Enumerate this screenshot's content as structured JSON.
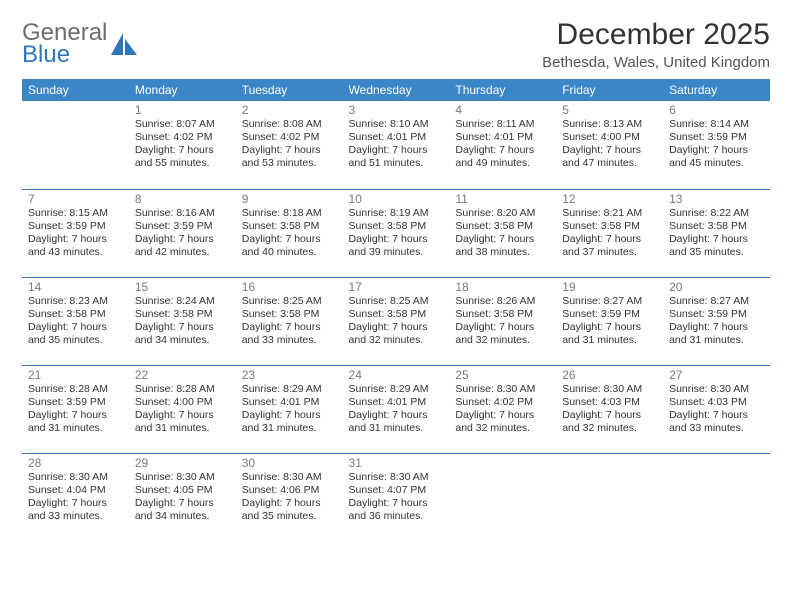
{
  "brand": {
    "line1": "General",
    "line2": "Blue"
  },
  "title": "December 2025",
  "location": "Bethesda, Wales, United Kingdom",
  "day_headers": [
    "Sunday",
    "Monday",
    "Tuesday",
    "Wednesday",
    "Thursday",
    "Friday",
    "Saturday"
  ],
  "colors": {
    "header_bg": "#3b86c7",
    "header_fg": "#ffffff",
    "rule": "#2f77bb",
    "brand_blue": "#2f77bb",
    "brand_gray": "#6d6d6d"
  },
  "first_weekday_index": 1,
  "days": [
    {
      "n": 1,
      "sunrise": "8:07 AM",
      "sunset": "4:02 PM",
      "daylight": "7 hours and 55 minutes."
    },
    {
      "n": 2,
      "sunrise": "8:08 AM",
      "sunset": "4:02 PM",
      "daylight": "7 hours and 53 minutes."
    },
    {
      "n": 3,
      "sunrise": "8:10 AM",
      "sunset": "4:01 PM",
      "daylight": "7 hours and 51 minutes."
    },
    {
      "n": 4,
      "sunrise": "8:11 AM",
      "sunset": "4:01 PM",
      "daylight": "7 hours and 49 minutes."
    },
    {
      "n": 5,
      "sunrise": "8:13 AM",
      "sunset": "4:00 PM",
      "daylight": "7 hours and 47 minutes."
    },
    {
      "n": 6,
      "sunrise": "8:14 AM",
      "sunset": "3:59 PM",
      "daylight": "7 hours and 45 minutes."
    },
    {
      "n": 7,
      "sunrise": "8:15 AM",
      "sunset": "3:59 PM",
      "daylight": "7 hours and 43 minutes."
    },
    {
      "n": 8,
      "sunrise": "8:16 AM",
      "sunset": "3:59 PM",
      "daylight": "7 hours and 42 minutes."
    },
    {
      "n": 9,
      "sunrise": "8:18 AM",
      "sunset": "3:58 PM",
      "daylight": "7 hours and 40 minutes."
    },
    {
      "n": 10,
      "sunrise": "8:19 AM",
      "sunset": "3:58 PM",
      "daylight": "7 hours and 39 minutes."
    },
    {
      "n": 11,
      "sunrise": "8:20 AM",
      "sunset": "3:58 PM",
      "daylight": "7 hours and 38 minutes."
    },
    {
      "n": 12,
      "sunrise": "8:21 AM",
      "sunset": "3:58 PM",
      "daylight": "7 hours and 37 minutes."
    },
    {
      "n": 13,
      "sunrise": "8:22 AM",
      "sunset": "3:58 PM",
      "daylight": "7 hours and 35 minutes."
    },
    {
      "n": 14,
      "sunrise": "8:23 AM",
      "sunset": "3:58 PM",
      "daylight": "7 hours and 35 minutes."
    },
    {
      "n": 15,
      "sunrise": "8:24 AM",
      "sunset": "3:58 PM",
      "daylight": "7 hours and 34 minutes."
    },
    {
      "n": 16,
      "sunrise": "8:25 AM",
      "sunset": "3:58 PM",
      "daylight": "7 hours and 33 minutes."
    },
    {
      "n": 17,
      "sunrise": "8:25 AM",
      "sunset": "3:58 PM",
      "daylight": "7 hours and 32 minutes."
    },
    {
      "n": 18,
      "sunrise": "8:26 AM",
      "sunset": "3:58 PM",
      "daylight": "7 hours and 32 minutes."
    },
    {
      "n": 19,
      "sunrise": "8:27 AM",
      "sunset": "3:59 PM",
      "daylight": "7 hours and 31 minutes."
    },
    {
      "n": 20,
      "sunrise": "8:27 AM",
      "sunset": "3:59 PM",
      "daylight": "7 hours and 31 minutes."
    },
    {
      "n": 21,
      "sunrise": "8:28 AM",
      "sunset": "3:59 PM",
      "daylight": "7 hours and 31 minutes."
    },
    {
      "n": 22,
      "sunrise": "8:28 AM",
      "sunset": "4:00 PM",
      "daylight": "7 hours and 31 minutes."
    },
    {
      "n": 23,
      "sunrise": "8:29 AM",
      "sunset": "4:01 PM",
      "daylight": "7 hours and 31 minutes."
    },
    {
      "n": 24,
      "sunrise": "8:29 AM",
      "sunset": "4:01 PM",
      "daylight": "7 hours and 31 minutes."
    },
    {
      "n": 25,
      "sunrise": "8:30 AM",
      "sunset": "4:02 PM",
      "daylight": "7 hours and 32 minutes."
    },
    {
      "n": 26,
      "sunrise": "8:30 AM",
      "sunset": "4:03 PM",
      "daylight": "7 hours and 32 minutes."
    },
    {
      "n": 27,
      "sunrise": "8:30 AM",
      "sunset": "4:03 PM",
      "daylight": "7 hours and 33 minutes."
    },
    {
      "n": 28,
      "sunrise": "8:30 AM",
      "sunset": "4:04 PM",
      "daylight": "7 hours and 33 minutes."
    },
    {
      "n": 29,
      "sunrise": "8:30 AM",
      "sunset": "4:05 PM",
      "daylight": "7 hours and 34 minutes."
    },
    {
      "n": 30,
      "sunrise": "8:30 AM",
      "sunset": "4:06 PM",
      "daylight": "7 hours and 35 minutes."
    },
    {
      "n": 31,
      "sunrise": "8:30 AM",
      "sunset": "4:07 PM",
      "daylight": "7 hours and 36 minutes."
    }
  ],
  "labels": {
    "sunrise": "Sunrise:",
    "sunset": "Sunset:",
    "daylight": "Daylight:"
  }
}
